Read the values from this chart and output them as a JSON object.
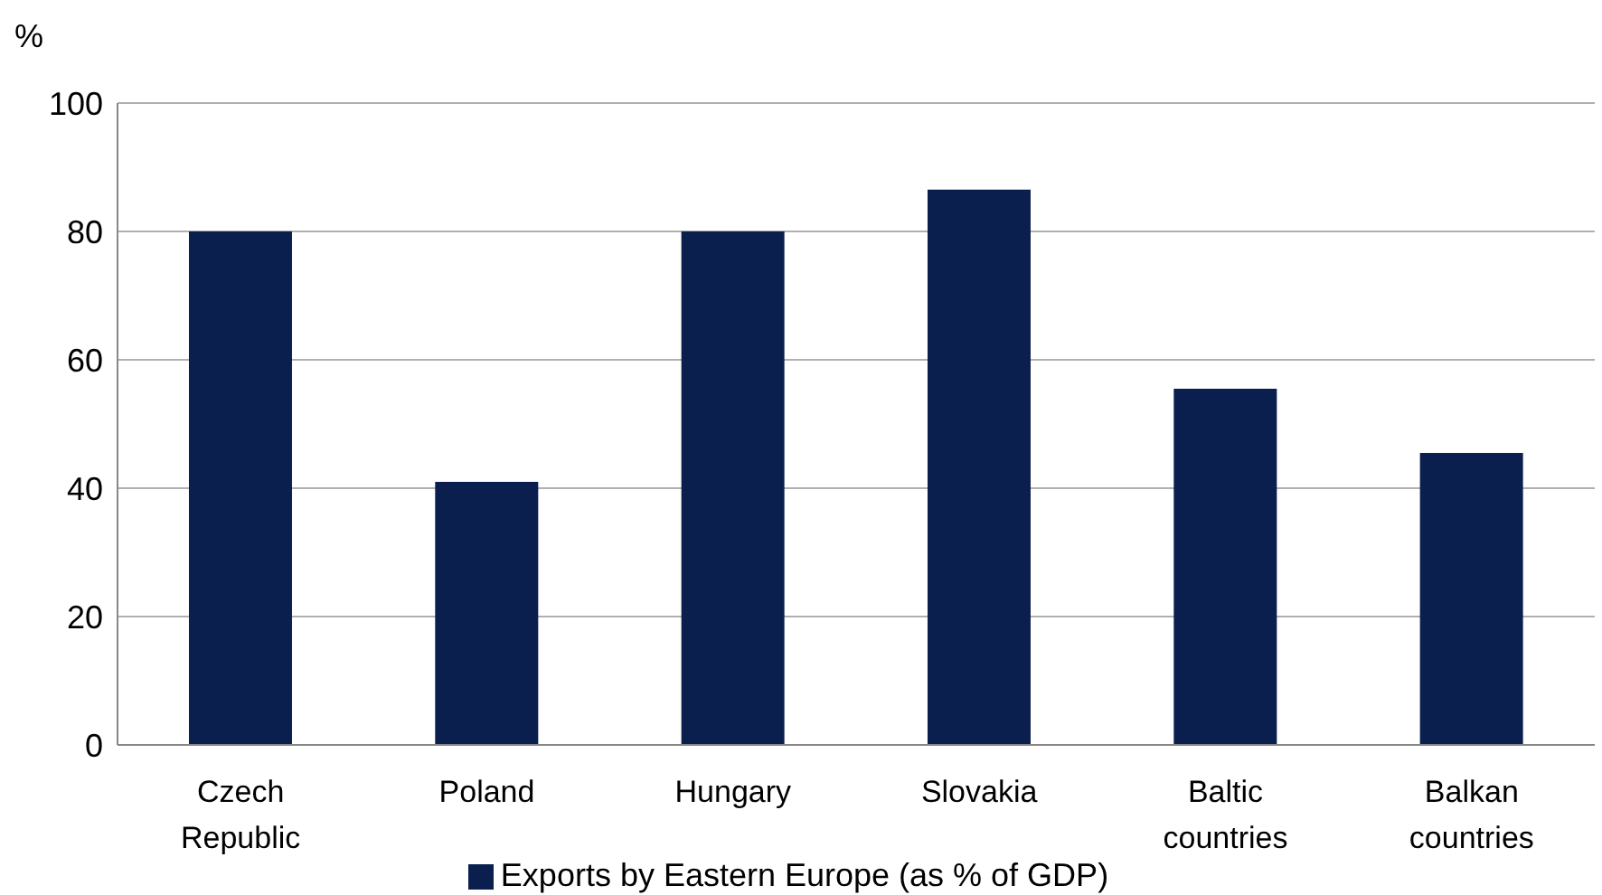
{
  "chart_data": {
    "type": "bar",
    "ylabel": "%",
    "categories": [
      "Czech Republic",
      "Poland",
      "Hungary",
      "Slovakia",
      "Baltic countries",
      "Balkan countries"
    ],
    "series": [
      {
        "name": "Exports by Eastern Europe (as % of GDP)",
        "color": "#0a1f4e",
        "values": [
          80,
          41,
          80,
          86.5,
          55.5,
          45.5
        ]
      }
    ],
    "ylim": [
      0,
      100
    ],
    "yticks": [
      0,
      20,
      40,
      60,
      80,
      100
    ],
    "grid": "y",
    "legend": "bottom"
  }
}
